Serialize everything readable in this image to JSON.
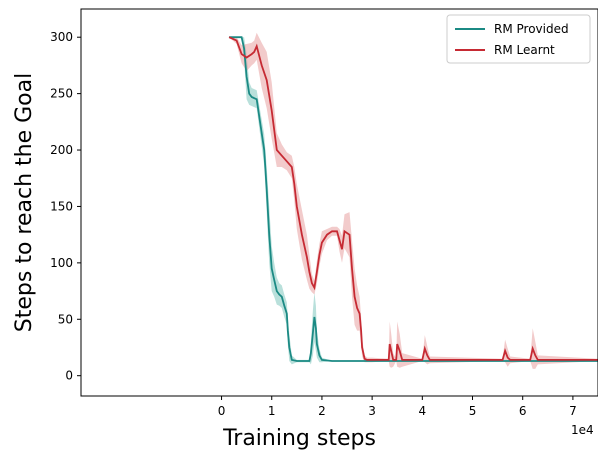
{
  "chart_data": {
    "type": "line",
    "xlabel": "Training steps",
    "ylabel": "Steps to reach the Goal",
    "x_offset_label": "1e4",
    "xlim": [
      -2.8,
      7.5
    ],
    "ylim": [
      -18,
      325
    ],
    "x_ticks": [
      0,
      1,
      2,
      3,
      4,
      5,
      6,
      7
    ],
    "y_ticks": [
      0,
      50,
      100,
      150,
      200,
      250,
      300
    ],
    "legend_position": "top-right",
    "series": [
      {
        "name": "RM Provided",
        "color": "#1b8a84",
        "fill": "#7fc6bd",
        "points": [
          [
            0.15,
            300
          ],
          [
            0.3,
            300
          ],
          [
            0.4,
            300
          ],
          [
            0.45,
            290
          ],
          [
            0.5,
            265
          ],
          [
            0.55,
            250
          ],
          [
            0.6,
            247
          ],
          [
            0.7,
            245
          ],
          [
            0.75,
            230
          ],
          [
            0.8,
            215
          ],
          [
            0.85,
            200
          ],
          [
            0.9,
            165
          ],
          [
            0.95,
            125
          ],
          [
            1.0,
            95
          ],
          [
            1.05,
            85
          ],
          [
            1.1,
            75
          ],
          [
            1.15,
            72
          ],
          [
            1.2,
            70
          ],
          [
            1.25,
            62
          ],
          [
            1.3,
            55
          ],
          [
            1.32,
            40
          ],
          [
            1.35,
            25
          ],
          [
            1.4,
            14
          ],
          [
            1.5,
            13
          ],
          [
            1.6,
            13
          ],
          [
            1.7,
            13
          ],
          [
            1.75,
            13
          ],
          [
            1.78,
            20
          ],
          [
            1.82,
            38
          ],
          [
            1.85,
            52
          ],
          [
            1.88,
            42
          ],
          [
            1.9,
            28
          ],
          [
            1.95,
            18
          ],
          [
            2.0,
            14
          ],
          [
            2.2,
            13
          ],
          [
            3.0,
            13
          ],
          [
            4.0,
            13
          ],
          [
            5.0,
            13
          ],
          [
            6.0,
            13
          ],
          [
            7.5,
            13
          ]
        ],
        "band_halfwidth": [
          0,
          0,
          0,
          10,
          20,
          10,
          8,
          8,
          10,
          12,
          14,
          20,
          25,
          20,
          15,
          12,
          10,
          10,
          10,
          10,
          12,
          12,
          4,
          1,
          1,
          1,
          1,
          10,
          20,
          22,
          20,
          12,
          6,
          2,
          0,
          0,
          0,
          0,
          0,
          0
        ]
      },
      {
        "name": "RM Learnt",
        "color": "#c62a33",
        "fill": "#e8a0a0",
        "points": [
          [
            0.15,
            300
          ],
          [
            0.3,
            297
          ],
          [
            0.4,
            285
          ],
          [
            0.5,
            282
          ],
          [
            0.6,
            285
          ],
          [
            0.65,
            287
          ],
          [
            0.7,
            292
          ],
          [
            0.8,
            275
          ],
          [
            0.9,
            262
          ],
          [
            1.0,
            235
          ],
          [
            1.1,
            200
          ],
          [
            1.2,
            195
          ],
          [
            1.3,
            190
          ],
          [
            1.4,
            185
          ],
          [
            1.45,
            170
          ],
          [
            1.5,
            150
          ],
          [
            1.6,
            125
          ],
          [
            1.7,
            105
          ],
          [
            1.75,
            92
          ],
          [
            1.8,
            82
          ],
          [
            1.85,
            78
          ],
          [
            1.9,
            92
          ],
          [
            1.95,
            107
          ],
          [
            2.0,
            118
          ],
          [
            2.1,
            125
          ],
          [
            2.2,
            128
          ],
          [
            2.3,
            128
          ],
          [
            2.35,
            120
          ],
          [
            2.4,
            112
          ],
          [
            2.45,
            128
          ],
          [
            2.55,
            125
          ],
          [
            2.6,
            95
          ],
          [
            2.65,
            70
          ],
          [
            2.7,
            60
          ],
          [
            2.75,
            55
          ],
          [
            2.78,
            40
          ],
          [
            2.8,
            25
          ],
          [
            2.85,
            15
          ],
          [
            2.9,
            14
          ],
          [
            3.0,
            14
          ],
          [
            3.33,
            14
          ],
          [
            3.35,
            28
          ],
          [
            3.38,
            22
          ],
          [
            3.42,
            14
          ],
          [
            3.48,
            14
          ],
          [
            3.5,
            28
          ],
          [
            3.55,
            22
          ],
          [
            3.6,
            14
          ],
          [
            4.0,
            14
          ],
          [
            4.05,
            24
          ],
          [
            4.1,
            18
          ],
          [
            4.15,
            14
          ],
          [
            5.6,
            14
          ],
          [
            5.65,
            22
          ],
          [
            5.7,
            16
          ],
          [
            5.75,
            14
          ],
          [
            6.15,
            14
          ],
          [
            6.2,
            24
          ],
          [
            6.25,
            18
          ],
          [
            6.3,
            14
          ],
          [
            7.5,
            14
          ]
        ],
        "band_halfwidth": [
          0,
          3,
          8,
          12,
          10,
          10,
          12,
          20,
          25,
          25,
          15,
          10,
          8,
          10,
          15,
          20,
          22,
          20,
          15,
          8,
          6,
          10,
          10,
          10,
          5,
          4,
          4,
          10,
          12,
          15,
          20,
          25,
          25,
          20,
          15,
          12,
          8,
          3,
          2,
          2,
          1,
          20,
          15,
          6,
          1,
          20,
          15,
          6,
          1,
          12,
          8,
          3,
          1,
          10,
          8,
          3,
          1,
          18,
          12,
          4,
          1
        ]
      }
    ]
  }
}
